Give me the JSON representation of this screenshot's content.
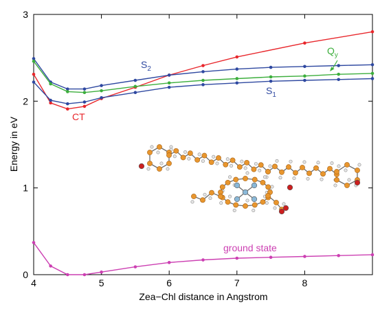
{
  "chart_data": {
    "type": "line",
    "title": "",
    "xlabel": "Zea−Chl distance in Angstrom",
    "ylabel": "Energy in eV",
    "xlim": [
      4,
      9
    ],
    "ylim": [
      0,
      3
    ],
    "x_ticks": [
      "4",
      "5",
      "6",
      "7",
      "8"
    ],
    "y_ticks": [
      "0",
      "1",
      "2",
      "3"
    ],
    "grid": false,
    "legend": "none",
    "series": [
      {
        "name": "CT",
        "color": "#e8262b",
        "x": [
          4.0,
          4.25,
          4.5,
          4.75,
          5.0,
          5.5,
          6.0,
          6.5,
          7.0,
          8.0,
          9.0
        ],
        "y": [
          2.31,
          1.98,
          1.91,
          1.94,
          2.03,
          2.16,
          2.3,
          2.41,
          2.51,
          2.67,
          2.8
        ]
      },
      {
        "name": "S",
        "sub": "2",
        "color": "#2e48a0",
        "x": [
          4.0,
          4.25,
          4.5,
          4.75,
          5.0,
          5.5,
          6.0,
          6.5,
          7.0,
          7.5,
          8.0,
          8.5,
          9.0
        ],
        "y": [
          2.49,
          2.22,
          2.14,
          2.14,
          2.18,
          2.24,
          2.3,
          2.34,
          2.37,
          2.39,
          2.4,
          2.41,
          2.42
        ]
      },
      {
        "name": "Q",
        "sub": "y",
        "color": "#3cae3c",
        "x": [
          4.0,
          4.25,
          4.5,
          4.75,
          5.0,
          5.5,
          6.0,
          6.5,
          7.0,
          7.5,
          8.0,
          8.5,
          9.0
        ],
        "y": [
          2.46,
          2.2,
          2.11,
          2.1,
          2.12,
          2.17,
          2.21,
          2.24,
          2.26,
          2.28,
          2.29,
          2.31,
          2.32
        ]
      },
      {
        "name": "S",
        "sub": "1",
        "color": "#2e48a0",
        "x": [
          4.0,
          4.25,
          4.5,
          4.75,
          5.0,
          5.5,
          6.0,
          6.5,
          7.0,
          7.5,
          8.0,
          8.5,
          9.0
        ],
        "y": [
          2.22,
          2.01,
          1.97,
          1.99,
          2.04,
          2.1,
          2.16,
          2.19,
          2.21,
          2.23,
          2.24,
          2.25,
          2.26
        ]
      },
      {
        "name": "ground state",
        "color": "#cc3fb2",
        "x": [
          4.0,
          4.25,
          4.5,
          4.75,
          5.0,
          5.5,
          6.0,
          6.5,
          7.0,
          7.5,
          8.0,
          8.5,
          9.0
        ],
        "y": [
          0.37,
          0.1,
          0.0,
          0.0,
          0.03,
          0.09,
          0.14,
          0.17,
          0.19,
          0.2,
          0.21,
          0.22,
          0.23
        ]
      }
    ],
    "colors": {
      "carbon": "#e8962e",
      "carbon_stroke": "#a45f12",
      "hydrogen": "#e6e6e6",
      "hydrogen_stroke": "#8c8c8c",
      "oxygen": "#cc1f1f",
      "nitrogen": "#8ab8d8",
      "bond": "#6b6b6b"
    }
  }
}
